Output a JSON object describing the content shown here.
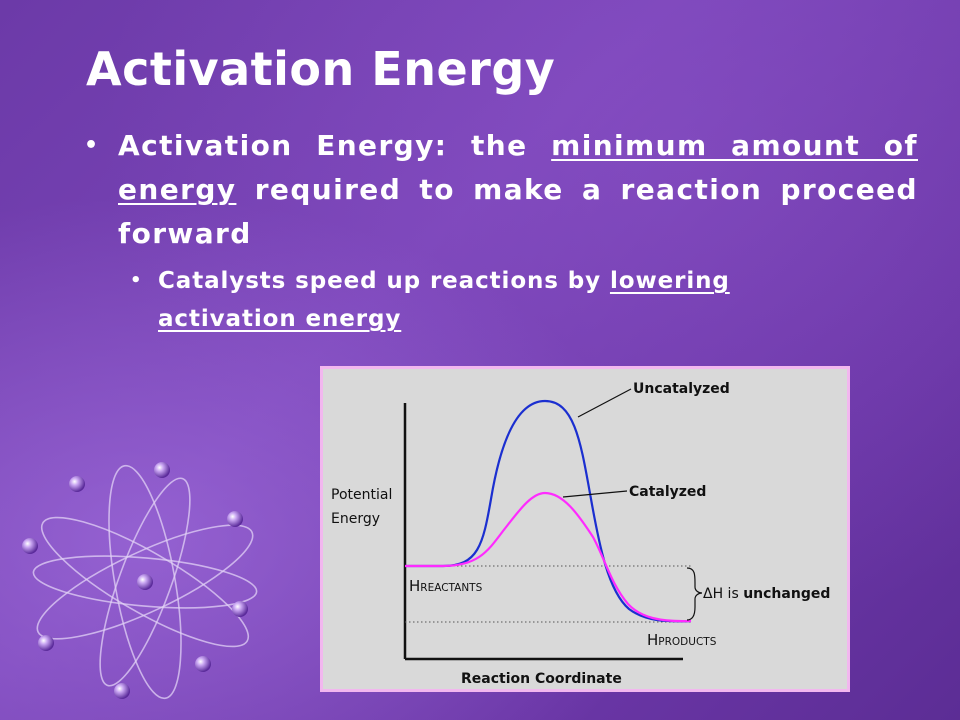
{
  "slide": {
    "title": "Activation Energy",
    "bullet1": {
      "prefix": "Activation Energy: the ",
      "underlined_1": "minimum amount of energy",
      "suffix": " required to make a reaction proceed forward"
    },
    "bullet2": {
      "prefix": "Catalysts speed up reactions by ",
      "underlined_1": "lowering activation energy"
    }
  },
  "diagram": {
    "ylabel_line1": "Potential",
    "ylabel_line2": "Energy",
    "xlabel": "Reaction Coordinate",
    "curve_uncatalyzed_label": "Uncatalyzed",
    "curve_catalyzed_label": "Catalyzed",
    "h_reactants_main": "H",
    "h_reactants_sub": "REACTANTS",
    "h_products_main": "H",
    "h_products_sub": "PRODUCTS",
    "delta_h_prefix": "ΔH is ",
    "delta_h_bold": "unchanged",
    "colors": {
      "uncatalyzed": "#1b2fd0",
      "catalyzed": "#ff2bff",
      "background": "#d9d9d9",
      "frame": "#f2b7ef"
    }
  },
  "decor": {
    "atom_icon": "atom-icon"
  }
}
